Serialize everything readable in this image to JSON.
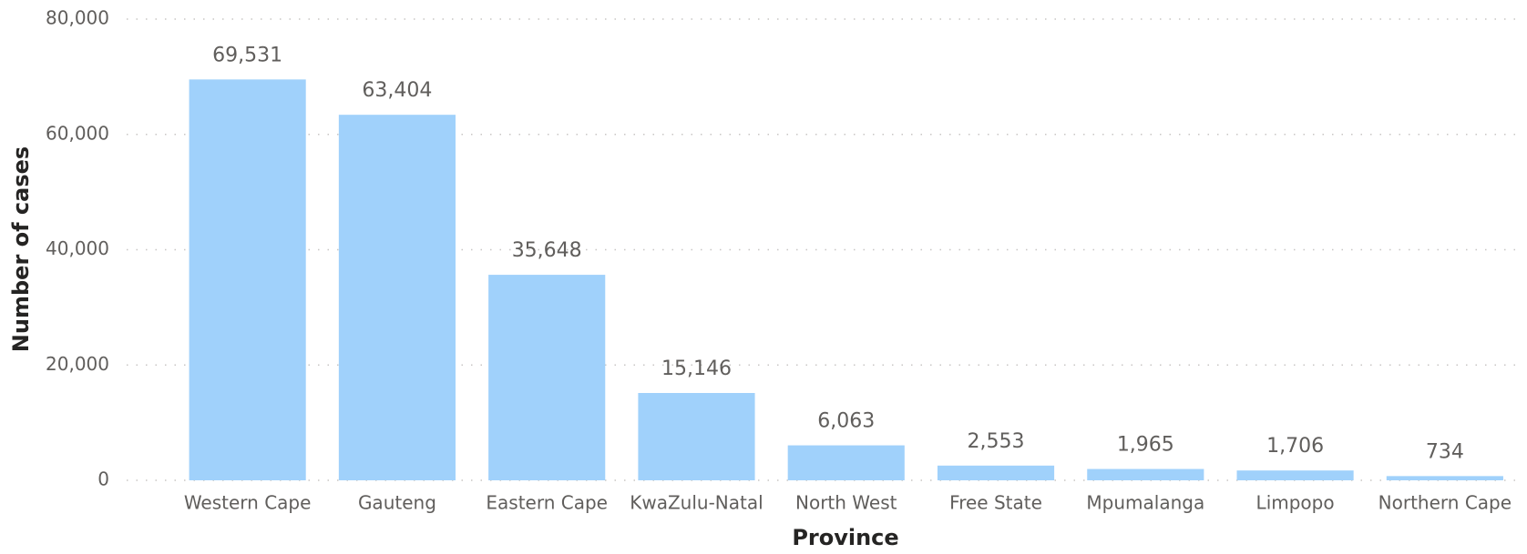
{
  "chart_data": {
    "type": "bar",
    "x_label": "Province",
    "y_label": "Number of cases",
    "categories": [
      "Western Cape",
      "Gauteng",
      "Eastern Cape",
      "KwaZulu-Natal",
      "North West",
      "Free State",
      "Mpumalanga",
      "Limpopo",
      "Northern Cape"
    ],
    "values": [
      69531,
      63404,
      35648,
      15146,
      6063,
      2553,
      1965,
      1706,
      734
    ],
    "value_labels": [
      "69,531",
      "63,404",
      "35,648",
      "15,146",
      "6,063",
      "2,553",
      "1,965",
      "1,706",
      "734"
    ],
    "color": "#a0d1fb",
    "ylim": [
      0,
      80000
    ],
    "yticks": [
      0,
      {
        "value": 20000,
        "label": "20,000"
      },
      {
        "value": 40000,
        "label": "40,000"
      },
      {
        "value": 60000,
        "label": "60,000"
      },
      {
        "value": 80000,
        "label": "80,000"
      }
    ],
    "grid": true
  }
}
